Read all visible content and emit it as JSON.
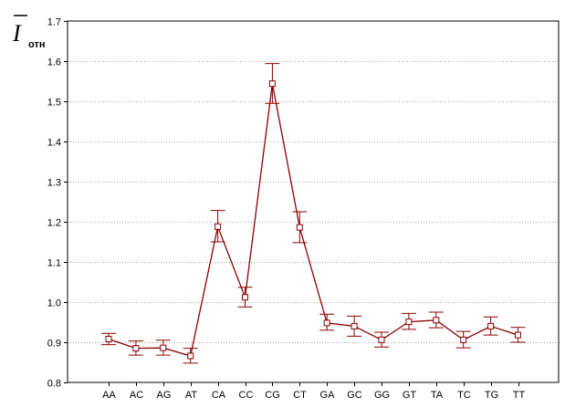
{
  "chart_data": {
    "type": "line",
    "title": "",
    "xlabel": "",
    "ylabel": "I",
    "ylabel_subscript": "отн",
    "ylabel_overline": true,
    "ylim": [
      0.8,
      1.7
    ],
    "yticks": [
      0.8,
      0.9,
      1.0,
      1.1,
      1.2,
      1.3,
      1.4,
      1.5,
      1.6,
      1.7
    ],
    "ytick_labels": [
      "0.8",
      "0.9",
      "1.0",
      "1.1",
      "1.2",
      "1.3",
      "1.4",
      "1.5",
      "1.6",
      "1.7"
    ],
    "grid": "horizontal dotted",
    "categories": [
      "AA",
      "AC",
      "AG",
      "AT",
      "CA",
      "CC",
      "CG",
      "CT",
      "GA",
      "GC",
      "GG",
      "GT",
      "TA",
      "TC",
      "TG",
      "TT"
    ],
    "series": [
      {
        "color": "#8b0000",
        "marker": "open-square",
        "values": [
          0.908,
          0.885,
          0.886,
          0.866,
          1.188,
          1.012,
          1.544,
          1.186,
          0.948,
          0.94,
          0.906,
          0.951,
          0.955,
          0.906,
          0.94,
          0.918
        ],
        "err_low": [
          0.894,
          0.868,
          0.868,
          0.848,
          1.15,
          0.988,
          1.495,
          1.148,
          0.93,
          0.915,
          0.888,
          0.932,
          0.936,
          0.886,
          0.918,
          0.9
        ],
        "err_high": [
          0.922,
          0.903,
          0.905,
          0.885,
          1.228,
          1.037,
          1.594,
          1.225,
          0.97,
          0.965,
          0.925,
          0.972,
          0.975,
          0.927,
          0.963,
          0.937
        ]
      }
    ]
  }
}
